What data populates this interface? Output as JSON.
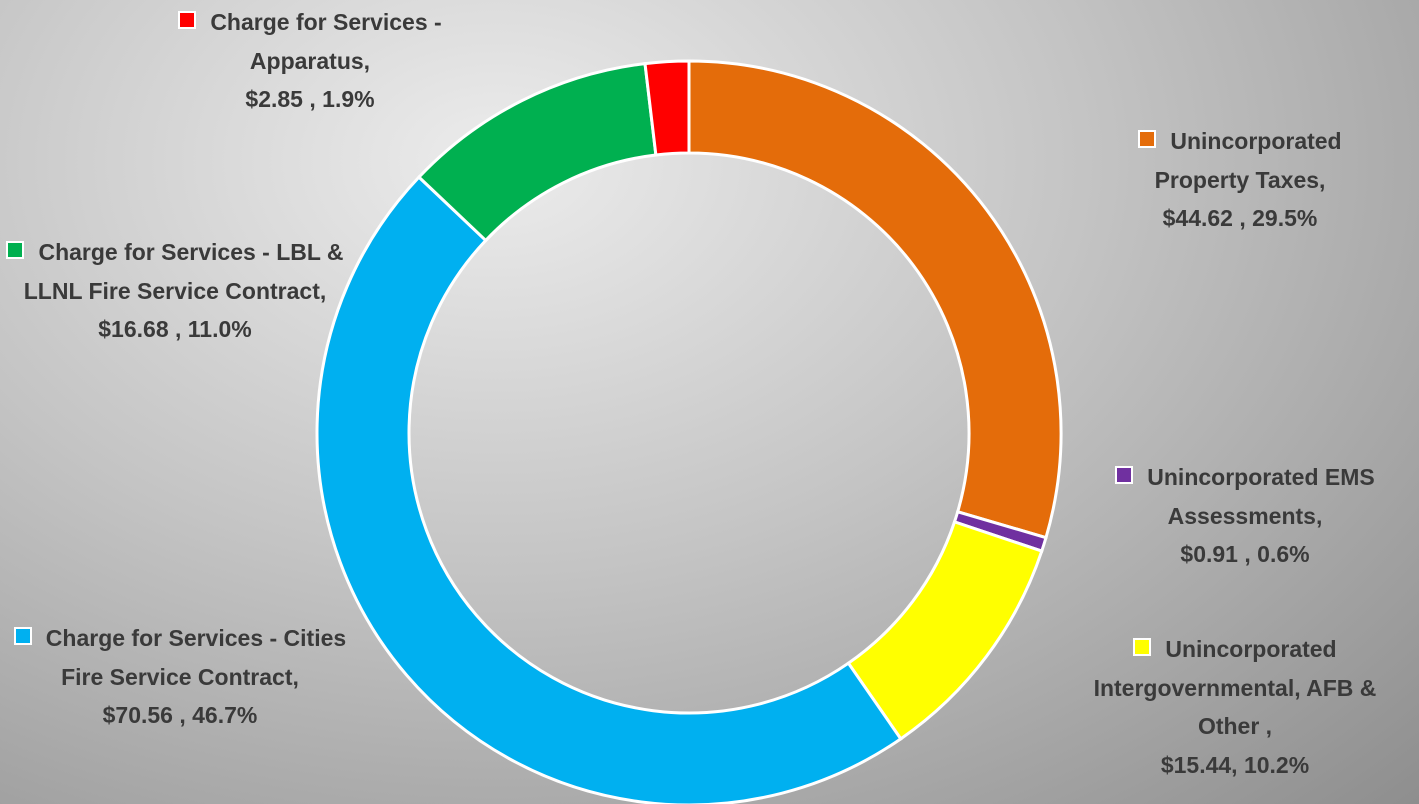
{
  "chart_data": {
    "type": "donut",
    "categories": [
      "Unincorporated Property Taxes,",
      "Unincorporated EMS Assessments,",
      "Unincorporated Intergovernmental, AFB & Other ,",
      "Charge for Services - Cities Fire Service Contract,",
      "Charge for Services - LBL & LLNL Fire Service Contract,",
      "Charge for Services - Apparatus,"
    ],
    "values": [
      44.62,
      0.91,
      15.44,
      70.56,
      16.68,
      2.85
    ],
    "value_labels": [
      "$44.62 , 29.5%",
      "$0.91 , 0.6%",
      "$15.44, 10.2%",
      "$70.56 , 46.7%",
      "$16.68 , 11.0%",
      "$2.85 , 1.9%"
    ],
    "colors": [
      "#E46C0A",
      "#7030A0",
      "#FFFF00",
      "#00B0F0",
      "#00B050",
      "#FF0000"
    ]
  }
}
